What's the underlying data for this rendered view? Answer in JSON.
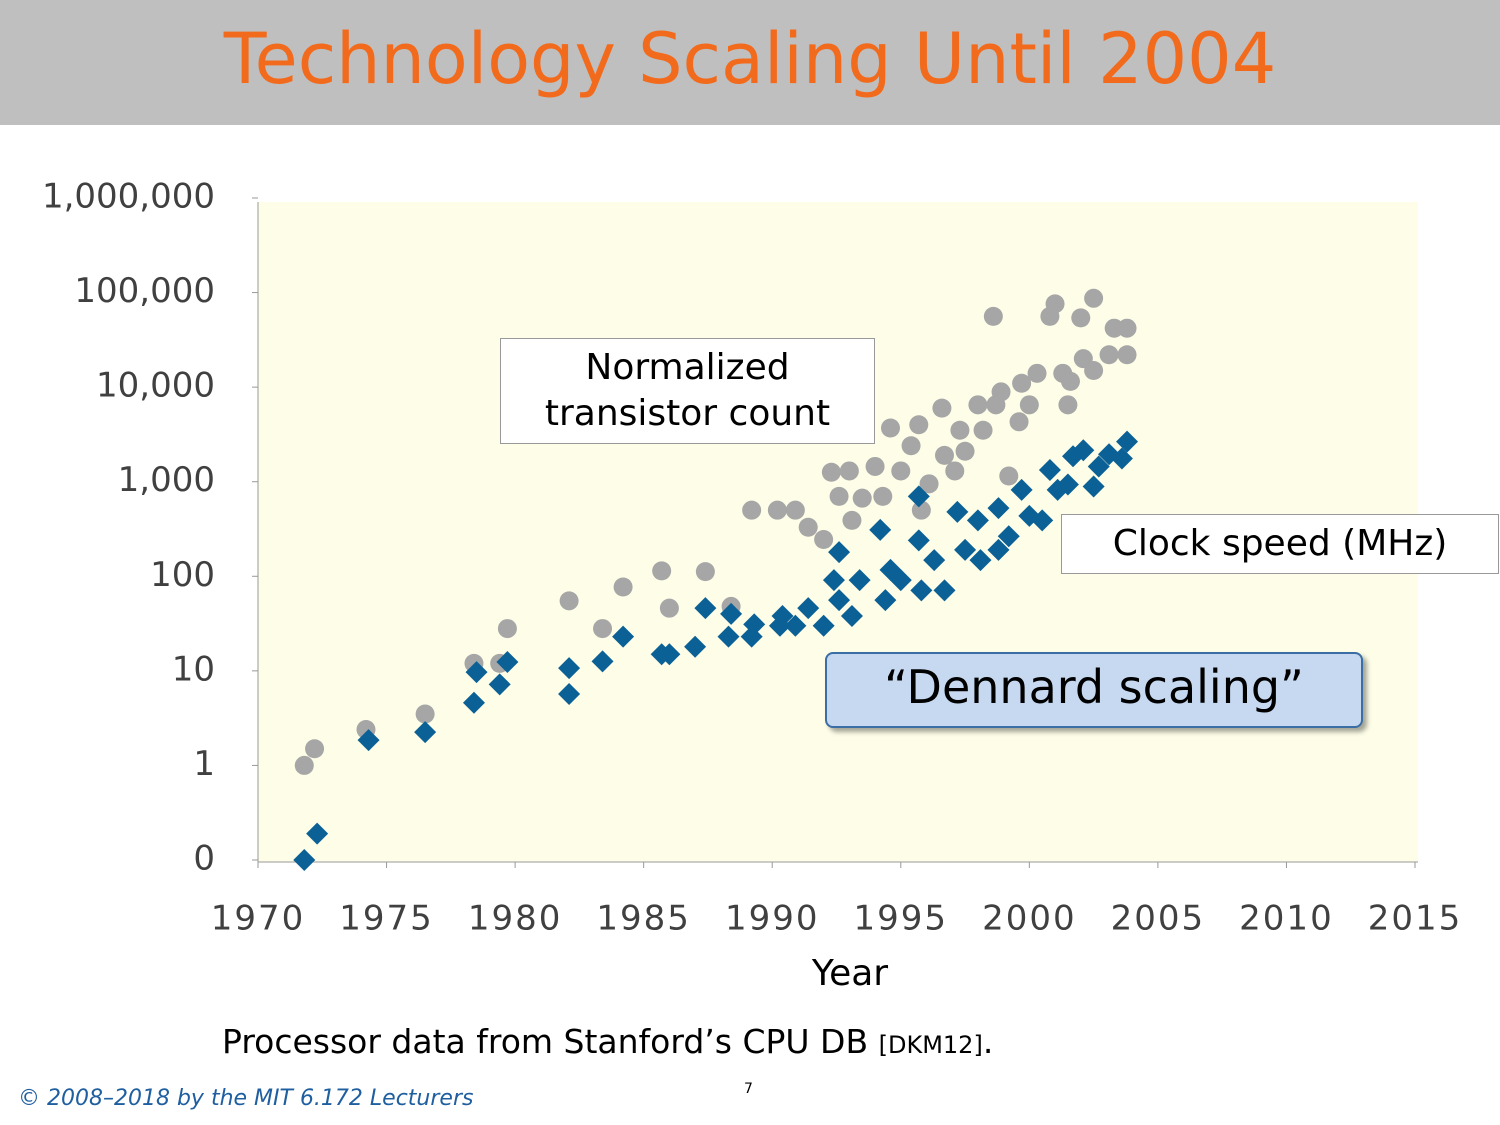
{
  "slide": {
    "title": "Technology Scaling Until 2004",
    "source": [
      "Processor data from Stanford’s CPU DB ",
      "[DKM12]",
      "."
    ],
    "copyright": "© 2008–2018 by the MIT 6.172 Lecturers",
    "page_number": "7"
  },
  "chart_data": {
    "type": "scatter",
    "x_label": "Year",
    "y_log": true,
    "grid": false,
    "xlim": [
      1970,
      2015
    ],
    "xticks": [
      1970,
      1975,
      1980,
      1985,
      1990,
      1995,
      2000,
      2005,
      2010,
      2015
    ],
    "ylim": [
      0.1,
      1000000
    ],
    "yticks": [
      {
        "value": 0.1,
        "label": "0"
      },
      1,
      10,
      100,
      {
        "value": 1000,
        "label": "1,000"
      },
      {
        "value": 10000,
        "label": "10,000"
      },
      {
        "value": 100000,
        "label": "100,000"
      },
      {
        "value": 1000000,
        "label": "1,000,000"
      }
    ],
    "annotation": "“Dennard scaling”",
    "series": [
      {
        "name": "Normalized transistor count",
        "color": "#a6a6a6",
        "marker": "circle",
        "x": [
          1971.8,
          1972.2,
          1974.2,
          1976.5,
          1978.4,
          1979.4,
          1979.7,
          1982.1,
          1983.4,
          1984.2,
          1985.7,
          1986.0,
          1987.4,
          1988.4,
          1989.2,
          1990.2,
          1990.9,
          1991.4,
          1992.0,
          1992.3,
          1992.6,
          1993.0,
          1993.1,
          1993.5,
          1994.0,
          1994.3,
          1994.6,
          1995.0,
          1995.4,
          1995.7,
          1995.8,
          1996.1,
          1996.6,
          1996.7,
          1997.1,
          1997.3,
          1997.5,
          1998.0,
          1998.2,
          1998.6,
          1998.7,
          1998.9,
          1999.2,
          1999.6,
          1999.7,
          2000.0,
          2000.3,
          2000.8,
          2001.0,
          2001.3,
          2001.5,
          2001.6,
          2002.0,
          2002.1,
          2002.5,
          2002.5,
          2003.1,
          2003.3,
          2003.8,
          2003.8
        ],
        "values": [
          1,
          1.5,
          2.4,
          3.5,
          12,
          12,
          28,
          55,
          28,
          77,
          114,
          46,
          112,
          48,
          500,
          500,
          500,
          330,
          245,
          1260,
          700,
          1300,
          390,
          670,
          1450,
          700,
          3700,
          1300,
          2400,
          4000,
          500,
          950,
          6000,
          1900,
          1300,
          3500,
          2100,
          6500,
          3500,
          56000,
          6500,
          8900,
          1150,
          4300,
          11000,
          6500,
          14000,
          56000,
          76000,
          14000,
          6500,
          11500,
          54000,
          20000,
          87000,
          15000,
          22000,
          42000,
          42000,
          22000
        ]
      },
      {
        "name": "Clock speed (MHz)",
        "color": "#0b6196",
        "marker": "diamond",
        "x": [
          1971.8,
          1972.3,
          1974.3,
          1976.5,
          1978.4,
          1978.5,
          1979.4,
          1979.7,
          1982.1,
          1982.1,
          1983.4,
          1984.2,
          1985.7,
          1986.0,
          1987.0,
          1987.4,
          1988.3,
          1988.4,
          1989.2,
          1989.3,
          1990.3,
          1990.4,
          1990.9,
          1991.4,
          1992.0,
          1992.6,
          1992.4,
          1992.6,
          1993.1,
          1993.4,
          1994.2,
          1994.4,
          1994.6,
          1995.0,
          1995.7,
          1995.7,
          1995.8,
          1996.3,
          1996.7,
          1997.2,
          1997.5,
          1998.0,
          1998.1,
          1998.8,
          1998.8,
          1999.2,
          1999.7,
          2000.0,
          2000.5,
          2000.8,
          2001.1,
          2001.5,
          2001.7,
          2002.1,
          2002.5,
          2002.7,
          2003.1,
          2003.6,
          2003.8
        ],
        "values": [
          0.1,
          0.19,
          1.85,
          2.25,
          4.6,
          9.7,
          7.2,
          12.4,
          5.7,
          10.7,
          12.6,
          23,
          15,
          15,
          18,
          46,
          23,
          40,
          23,
          31,
          30,
          38,
          30,
          46,
          30,
          180,
          91,
          56,
          38,
          91,
          310,
          56,
          117,
          91,
          700,
          240,
          71,
          148,
          71,
          480,
          190,
          390,
          148,
          525,
          190,
          265,
          820,
          435,
          390,
          1330,
          820,
          935,
          1860,
          2150,
          890,
          1450,
          1950,
          1760,
          2650
        ]
      }
    ]
  }
}
